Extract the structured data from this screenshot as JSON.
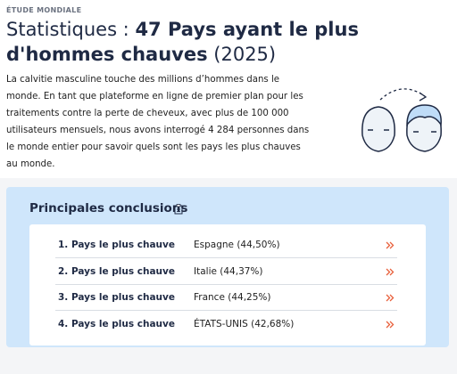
{
  "header": {
    "kicker": "ÉTUDE MONDIALE",
    "title_parts": [
      "Statistiques : ",
      "47 Pays ayant le plus d'hommes chauves",
      " (2025)"
    ],
    "intro": "La calvitie masculine touche des millions d’hommes dans le monde. En tant que plateforme en ligne de premier plan pour les traitements contre la perte de cheveux, avec plus de 100 000 utilisateurs mensuels, nous avons interrogé 4 284 personnes dans le monde entier pour savoir quels sont les pays les plus chauves au monde."
  },
  "conclusions": {
    "heading": "Principales conclusions",
    "rows": [
      {
        "label": "1. Pays le plus chauve",
        "value": "Espagne (44,50%)"
      },
      {
        "label": "2. Pays le plus chauve",
        "value": "Italie (44,37%)"
      },
      {
        "label": "3. Pays le plus chauve",
        "value": "France (44,25%)"
      },
      {
        "label": "4. Pays le plus chauve",
        "value": "ÉTATS-UNIS (42,68%)"
      }
    ]
  }
}
